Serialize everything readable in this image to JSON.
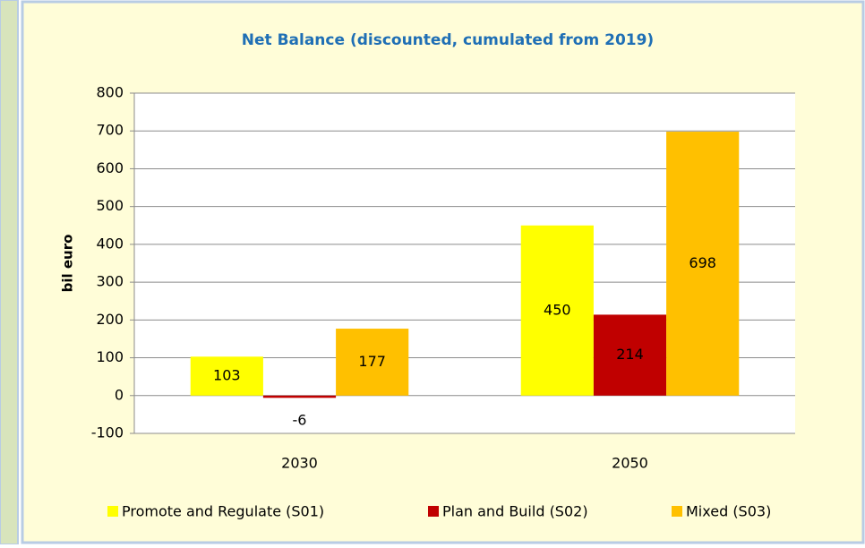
{
  "chart_data": {
    "type": "bar",
    "title": "Net Balance (discounted, cumulated from 2019)",
    "y_label": "bil euro",
    "categories": [
      "2030",
      "2050"
    ],
    "series": [
      {
        "name": "Promote and Regulate (S01)",
        "color": "#ffff00",
        "values": [
          103,
          450
        ]
      },
      {
        "name": "Plan and Build (S02)",
        "color": "#c00000",
        "values": [
          -6,
          214
        ]
      },
      {
        "name": "Mixed (S03)",
        "color": "#ffc000",
        "values": [
          177,
          698
        ]
      }
    ],
    "ylim": [
      -100,
      800
    ],
    "yticks": [
      -100,
      0,
      100,
      200,
      300,
      400,
      500,
      600,
      700,
      800
    ],
    "grid": true,
    "legend": "bottom"
  }
}
